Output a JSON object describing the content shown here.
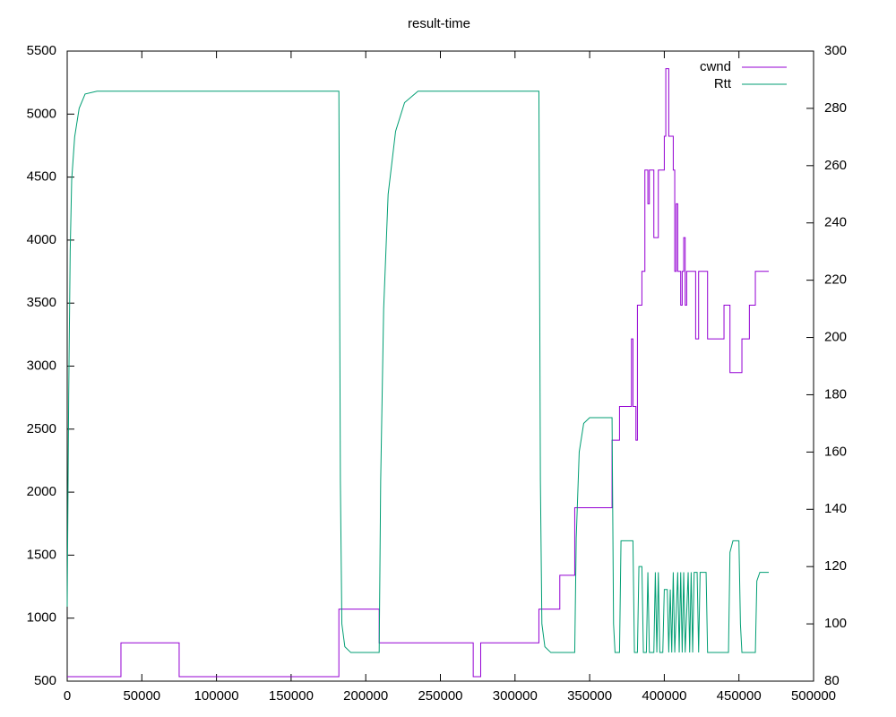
{
  "chart_data": {
    "type": "line",
    "title": "result-time",
    "xlim": [
      0,
      500000
    ],
    "xticks": [
      0,
      50000,
      100000,
      150000,
      200000,
      250000,
      300000,
      350000,
      400000,
      450000,
      500000
    ],
    "ylim": [
      500,
      5500
    ],
    "yticks": [
      500,
      1000,
      1500,
      2000,
      2500,
      3000,
      3500,
      4000,
      4500,
      5000,
      5500
    ],
    "y2lim": [
      80,
      300
    ],
    "y2ticks": [
      80,
      100,
      120,
      140,
      160,
      180,
      200,
      220,
      240,
      260,
      280,
      300
    ],
    "legend": "upper right",
    "grid": false,
    "series": [
      {
        "name": "cwnd",
        "color": "#9400d3",
        "x": [
          0,
          36000,
          36000,
          75000,
          75000,
          182000,
          182000,
          209000,
          209000,
          272000,
          272000,
          277000,
          277000,
          316000,
          316000,
          330000,
          330000,
          340000,
          340000,
          365000,
          365000,
          370000,
          370000,
          378000,
          378000,
          379000,
          379000,
          381000,
          381000,
          382000,
          382000,
          385000,
          385000,
          387000,
          387000,
          389000,
          389000,
          390000,
          390000,
          393000,
          393000,
          396000,
          396000,
          400000,
          400000,
          401000,
          401000,
          403000,
          403000,
          406000,
          406000,
          407000,
          407000,
          408000,
          408000,
          409000,
          409000,
          411000,
          411000,
          412000,
          412000,
          413000,
          413000,
          414000,
          414000,
          415000,
          415000,
          421000,
          421000,
          423000,
          423000,
          429000,
          429000,
          440000,
          440000,
          444000,
          444000,
          452000,
          452000,
          457000,
          457000,
          461000,
          461000,
          470000
        ],
        "values": [
          536,
          536,
          804,
          804,
          536,
          536,
          1072,
          1072,
          804,
          804,
          536,
          536,
          804,
          804,
          1072,
          1072,
          1340,
          1340,
          1876,
          1876,
          2412,
          2412,
          2680,
          2680,
          3216,
          3216,
          2680,
          2680,
          2412,
          2412,
          3484,
          3484,
          3752,
          3752,
          4556,
          4556,
          4288,
          4288,
          4556,
          4556,
          4020,
          4020,
          4556,
          4556,
          4824,
          4824,
          5360,
          5360,
          4824,
          4824,
          4556,
          4556,
          3752,
          3752,
          4288,
          4288,
          3752,
          3752,
          3484,
          3484,
          3752,
          3752,
          4020,
          4020,
          3484,
          3484,
          3752,
          3752,
          3216,
          3216,
          3752,
          3752,
          3216,
          3216,
          3484,
          3484,
          2948,
          2948,
          3216,
          3216,
          3484,
          3484,
          3752,
          3752
        ]
      },
      {
        "name": "Rtt",
        "color": "#009e73",
        "axis": "y2",
        "x": [
          0,
          1000,
          2000,
          3000,
          5000,
          8000,
          12000,
          20000,
          182000,
          183000,
          184000,
          186000,
          190000,
          209000,
          210000,
          212000,
          215000,
          220000,
          226000,
          235000,
          316000,
          317000,
          318000,
          320000,
          324000,
          340000,
          341000,
          343000,
          346000,
          350000,
          365000,
          366000,
          367000,
          370000,
          371000,
          379000,
          380000,
          382000,
          383000,
          385000,
          386000,
          388000,
          389000,
          390000,
          393000,
          394000,
          395000,
          396000,
          397000,
          399000,
          400000,
          402000,
          403000,
          404000,
          405000,
          406000,
          407000,
          409000,
          410000,
          411000,
          412000,
          413000,
          414000,
          416000,
          417000,
          418000,
          419000,
          420000,
          422000,
          423000,
          424000,
          428000,
          429000,
          443000,
          444000,
          446000,
          450000,
          451000,
          452000,
          461000,
          462000,
          464000,
          470000
        ],
        "values": [
          106,
          180,
          230,
          255,
          270,
          280,
          285,
          286,
          286,
          150,
          100,
          92,
          90,
          90,
          150,
          210,
          250,
          272,
          282,
          286,
          286,
          150,
          100,
          92,
          90,
          90,
          130,
          160,
          170,
          172,
          172,
          100,
          90,
          90,
          129,
          129,
          90,
          90,
          120,
          120,
          90,
          90,
          118,
          90,
          90,
          118,
          90,
          118,
          90,
          90,
          112,
          112,
          90,
          112,
          90,
          118,
          90,
          118,
          90,
          118,
          90,
          118,
          90,
          118,
          90,
          118,
          90,
          118,
          118,
          90,
          118,
          118,
          90,
          90,
          125,
          129,
          129,
          100,
          90,
          90,
          115,
          118,
          118
        ]
      }
    ]
  }
}
